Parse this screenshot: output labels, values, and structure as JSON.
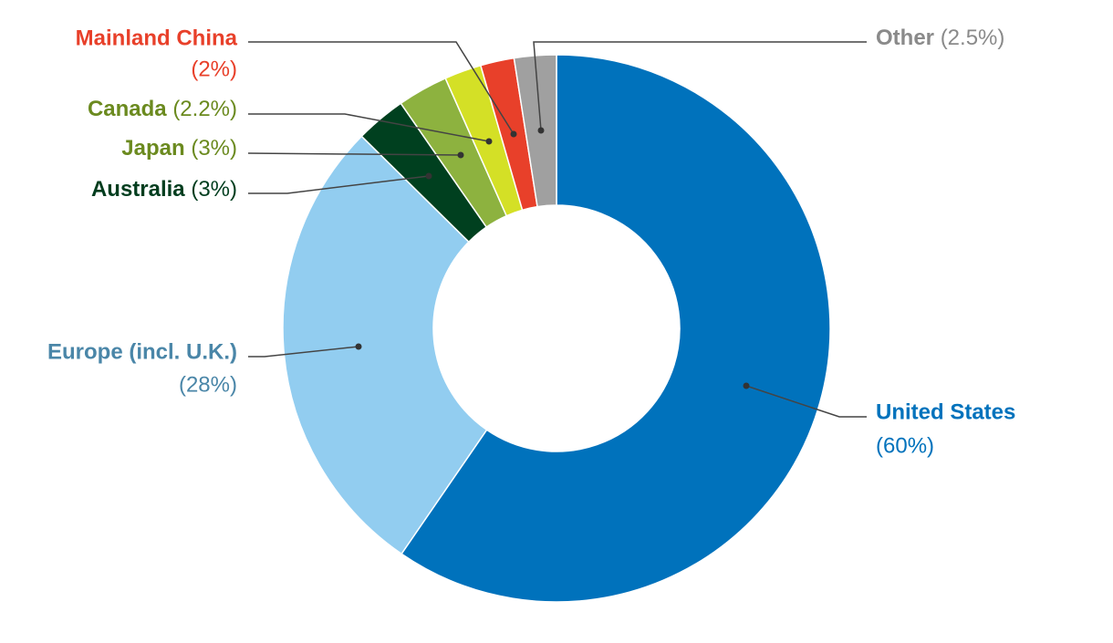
{
  "chart_data": {
    "type": "donut",
    "categories": [
      "United States",
      "Europe (incl. U.K.)",
      "Australia",
      "Japan",
      "Canada",
      "Mainland China",
      "Other"
    ],
    "values": [
      60,
      28,
      3,
      3,
      2.2,
      2,
      2.5
    ],
    "value_labels": [
      "(60%)",
      "(28%)",
      "(3%)",
      "(3%)",
      "(2.2%)",
      "(2%)",
      "(2.5%)"
    ],
    "colors": [
      "#0072bc",
      "#92cdf0",
      "#00401f",
      "#8db23f",
      "#d4e026",
      "#e8402a",
      "#a0a0a0"
    ],
    "label_colors": [
      "#0072bc",
      "#4a86a8",
      "#003d1e",
      "#6b8a1f",
      "#6b8a1f",
      "#e8402a",
      "#8a8a8a"
    ]
  }
}
